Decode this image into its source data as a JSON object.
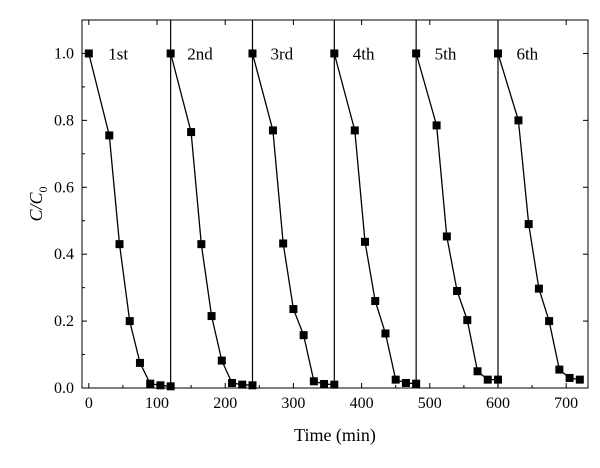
{
  "chart_data": {
    "type": "line",
    "xlabel": "Time (min)",
    "ylabel": "C/C",
    "ylabel_subscript": "0",
    "xlim": [
      -10,
      732
    ],
    "ylim": [
      0,
      1.1
    ],
    "x_ticks": [
      0,
      100,
      200,
      300,
      400,
      500,
      600,
      700
    ],
    "y_ticks": [
      0.0,
      0.2,
      0.4,
      0.6,
      0.8,
      1.0
    ],
    "x_tick_labels": [
      "0",
      "100",
      "200",
      "300",
      "400",
      "500",
      "600",
      "700"
    ],
    "y_tick_labels": [
      "0.0",
      "0.2",
      "0.4",
      "0.6",
      "0.8",
      "1.0"
    ],
    "dividers": [
      120,
      240,
      360,
      480,
      600
    ],
    "marker": "square",
    "color": "#000000",
    "series": [
      {
        "name": "1st",
        "x": [
          0,
          30,
          45,
          60,
          75,
          90,
          105,
          120
        ],
        "y": [
          1.0,
          0.755,
          0.43,
          0.2,
          0.075,
          0.013,
          0.008,
          0.005
        ]
      },
      {
        "name": "2nd",
        "x": [
          120,
          150,
          165,
          180,
          195,
          210,
          225,
          240
        ],
        "y": [
          1.0,
          0.765,
          0.43,
          0.215,
          0.082,
          0.015,
          0.01,
          0.008
        ]
      },
      {
        "name": "3rd",
        "x": [
          240,
          270,
          285,
          300,
          315,
          330,
          345,
          360
        ],
        "y": [
          1.0,
          0.77,
          0.432,
          0.236,
          0.158,
          0.02,
          0.012,
          0.01
        ]
      },
      {
        "name": "4th",
        "x": [
          360,
          390,
          405,
          420,
          435,
          450,
          465,
          480
        ],
        "y": [
          1.0,
          0.77,
          0.437,
          0.26,
          0.163,
          0.025,
          0.015,
          0.013
        ]
      },
      {
        "name": "5th",
        "x": [
          480,
          510,
          525,
          540,
          555,
          570,
          585,
          600
        ],
        "y": [
          1.0,
          0.785,
          0.453,
          0.29,
          0.203,
          0.05,
          0.025,
          0.025
        ]
      },
      {
        "name": "6th",
        "x": [
          600,
          630,
          645,
          660,
          675,
          690,
          705,
          720
        ],
        "y": [
          1.0,
          0.8,
          0.49,
          0.297,
          0.2,
          0.055,
          0.03,
          0.025
        ]
      }
    ]
  }
}
